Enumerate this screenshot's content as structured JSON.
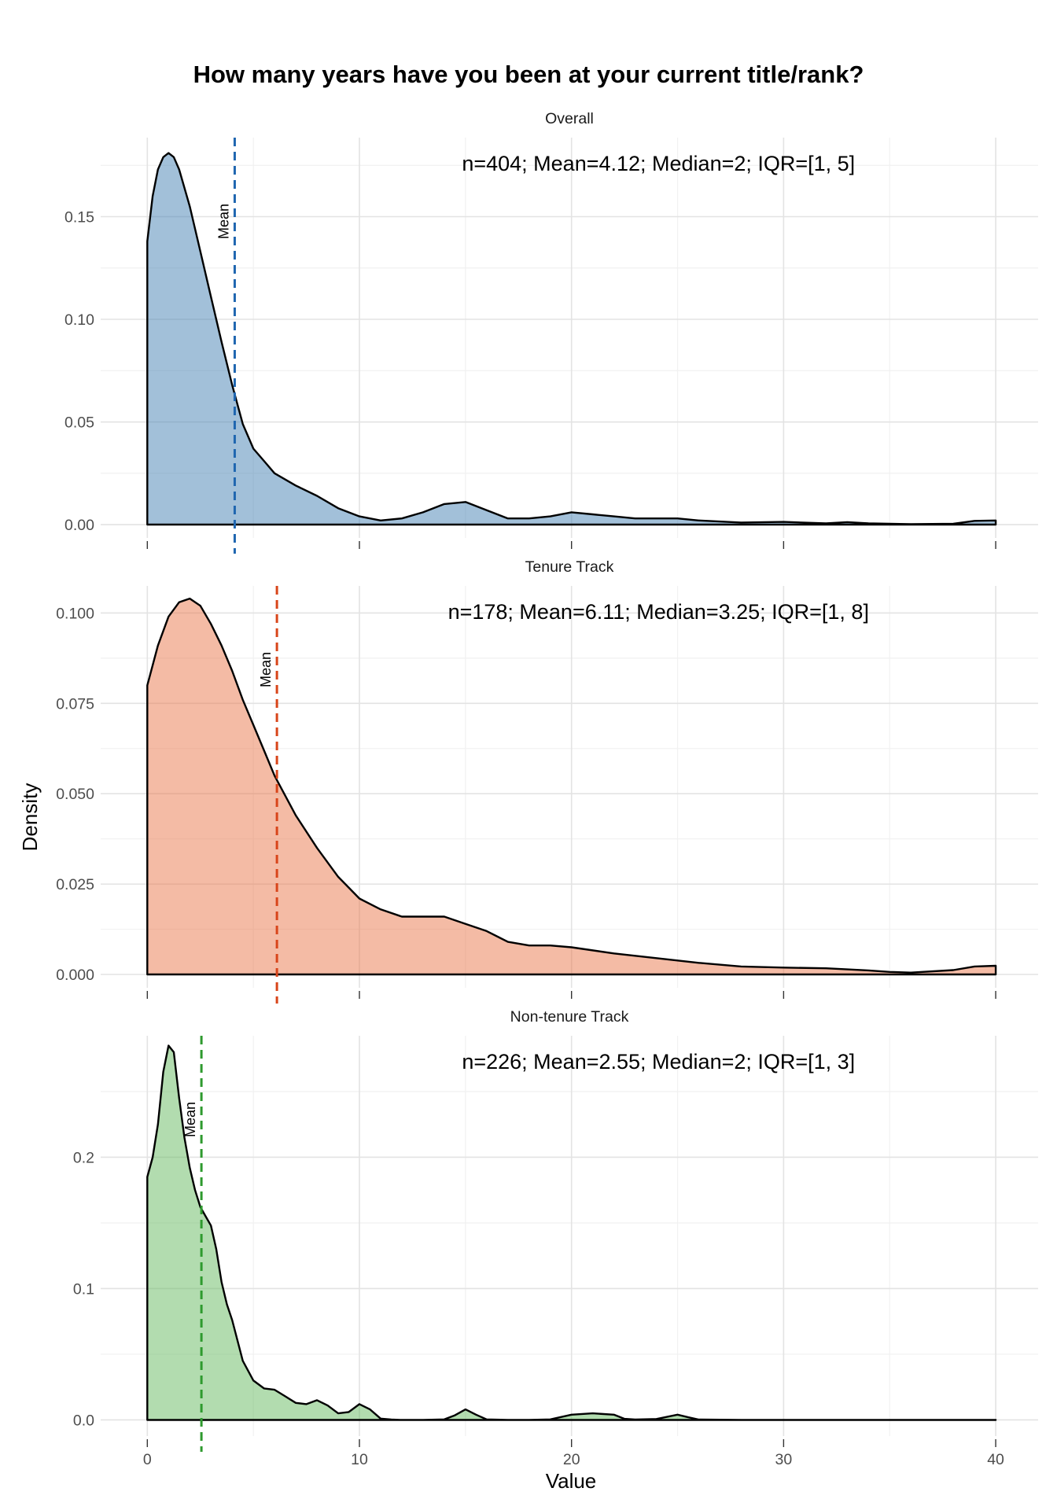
{
  "chart_data": {
    "type": "area",
    "title": "How many years have you been at your current title/rank?",
    "xlabel": "Value",
    "ylabel": "Density",
    "xlim": [
      -2.2,
      42
    ],
    "x_ticks": [
      0,
      10,
      20,
      30,
      40
    ],
    "x_tick_labels": [
      "0",
      "10",
      "20",
      "30",
      "40"
    ],
    "grid": true,
    "panels": [
      {
        "name": "Overall",
        "color": "#4682b4",
        "mean_color": "#1f66b0",
        "ylim": [
          -0.0065,
          0.1885
        ],
        "y_ticks": [
          0,
          0.05,
          0.1,
          0.15
        ],
        "y_tick_labels": [
          "0.00",
          "0.05",
          "0.10",
          "0.15"
        ],
        "mean": 4.12,
        "mean_label": "Mean",
        "annotation": "n=404; Mean=4.12; Median=2; IQR=[1, 5]",
        "x": [
          0,
          0.25,
          0.5,
          0.75,
          1,
          1.25,
          1.5,
          2,
          2.5,
          3,
          3.5,
          4,
          4.5,
          5,
          5.5,
          6,
          7,
          8,
          9,
          10,
          11,
          12,
          13,
          14,
          15,
          16,
          17,
          18,
          19,
          20,
          21,
          22,
          23,
          24,
          25,
          26,
          28,
          30,
          32,
          33,
          34,
          36,
          38,
          39,
          40
        ],
        "y": [
          0.138,
          0.16,
          0.173,
          0.179,
          0.181,
          0.179,
          0.173,
          0.155,
          0.133,
          0.111,
          0.089,
          0.068,
          0.049,
          0.037,
          0.031,
          0.025,
          0.019,
          0.014,
          0.008,
          0.004,
          0.002,
          0.003,
          0.006,
          0.01,
          0.011,
          0.007,
          0.003,
          0.003,
          0.004,
          0.006,
          0.005,
          0.004,
          0.003,
          0.003,
          0.003,
          0.002,
          0.001,
          0.0013,
          0.0006,
          0.0012,
          0.0006,
          0.0002,
          0.0004,
          0.0018,
          0.002
        ]
      },
      {
        "name": "Tenure Track",
        "color": "#e9774c",
        "mean_color": "#d8451a",
        "ylim": [
          -0.0037,
          0.1075
        ],
        "y_ticks": [
          0,
          0.025,
          0.05,
          0.075,
          0.1
        ],
        "y_tick_labels": [
          "0.000",
          "0.025",
          "0.050",
          "0.075",
          "0.100"
        ],
        "mean": 6.11,
        "mean_label": "Mean",
        "annotation": "n=178; Mean=6.11; Median=3.25; IQR=[1, 8]",
        "x": [
          0,
          0.5,
          1,
          1.5,
          2,
          2.5,
          3,
          3.5,
          4,
          4.5,
          5,
          5.5,
          6,
          7,
          8,
          9,
          10,
          11,
          12,
          13,
          14,
          15,
          16,
          17,
          18,
          19,
          20,
          22,
          24,
          26,
          28,
          30,
          32,
          34,
          35,
          36,
          38,
          39,
          40
        ],
        "y": [
          0.08,
          0.091,
          0.099,
          0.103,
          0.104,
          0.102,
          0.097,
          0.091,
          0.084,
          0.076,
          0.069,
          0.062,
          0.055,
          0.044,
          0.035,
          0.027,
          0.021,
          0.018,
          0.016,
          0.016,
          0.016,
          0.014,
          0.012,
          0.009,
          0.008,
          0.008,
          0.0075,
          0.0058,
          0.0045,
          0.0032,
          0.0022,
          0.0019,
          0.0017,
          0.0011,
          0.0007,
          0.0005,
          0.0012,
          0.0022,
          0.0024
        ]
      },
      {
        "name": "Non-tenure Track",
        "color": "#66b960",
        "mean_color": "#2e9a2e",
        "ylim": [
          -0.0123,
          0.2925
        ],
        "y_ticks": [
          0,
          0.1,
          0.2
        ],
        "y_tick_labels": [
          "0.0",
          "0.1",
          "0.2"
        ],
        "mean": 2.55,
        "mean_label": "Mean",
        "annotation": "n=226; Mean=2.55; Median=2; IQR=[1, 3]",
        "x": [
          0,
          0.25,
          0.5,
          0.75,
          1,
          1.25,
          1.5,
          1.75,
          2,
          2.25,
          2.5,
          2.75,
          3,
          3.25,
          3.5,
          3.75,
          4,
          4.5,
          5,
          5.5,
          6,
          6.5,
          7,
          7.5,
          8,
          8.5,
          9,
          9.5,
          10,
          10.5,
          11,
          11.5,
          12,
          13,
          14,
          14.5,
          15,
          15.5,
          16,
          17,
          18,
          19,
          20,
          21,
          22,
          22.5,
          23,
          24,
          25,
          25.5,
          26,
          28,
          30,
          35,
          40
        ],
        "y": [
          0.185,
          0.2,
          0.225,
          0.265,
          0.285,
          0.28,
          0.245,
          0.215,
          0.192,
          0.175,
          0.162,
          0.155,
          0.148,
          0.13,
          0.105,
          0.088,
          0.076,
          0.045,
          0.03,
          0.024,
          0.023,
          0.018,
          0.013,
          0.012,
          0.015,
          0.011,
          0.005,
          0.006,
          0.012,
          0.008,
          0.001,
          0.0003,
          0,
          0,
          0.0004,
          0.0035,
          0.008,
          0.004,
          0.0004,
          0,
          0,
          0.0004,
          0.004,
          0.005,
          0.004,
          0.0008,
          0.0003,
          0.0007,
          0.004,
          0.002,
          0.0003,
          0,
          0,
          0,
          0
        ]
      }
    ]
  }
}
